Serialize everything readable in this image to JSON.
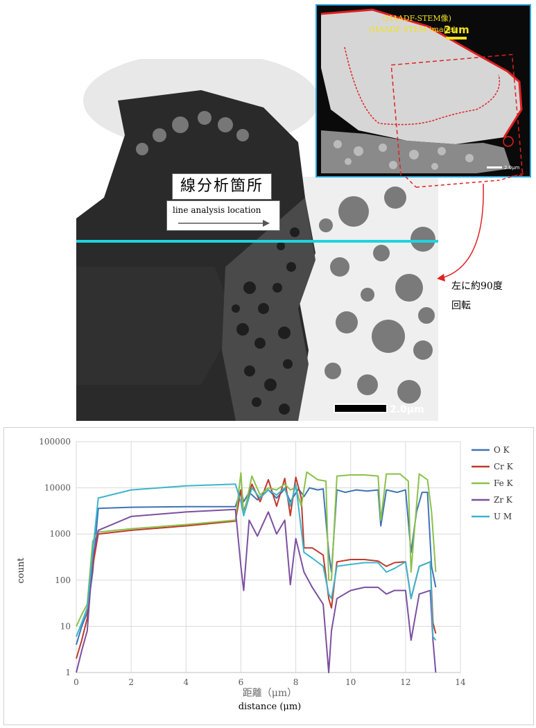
{
  "image": {
    "jp_label": "線分析箇所",
    "en_label": "line analysis location",
    "rotation_note_line1": "左に約90度",
    "rotation_note_line2": "回転",
    "main_scalebar": "2.0μm",
    "inset_title_jp": "(HAADF-STEM像)",
    "inset_title_en": "(HAADF-STEM image)",
    "inset_scalebar": "2um",
    "inset_small_scalebar": "2.0μm"
  },
  "colors": {
    "line_cyan": "#1fd3e0",
    "inset_border": "#29a9df",
    "outline_red": "#e02020",
    "inset_text": "#f0e020"
  },
  "chart_data": {
    "type": "line",
    "xlabel": "距離（μm）",
    "xlabel_en": "distance (μm)",
    "ylabel": "count",
    "xlim": [
      0,
      14
    ],
    "ylim": [
      1,
      100000
    ],
    "yscale": "log",
    "grid": true,
    "legend_position": "right",
    "x_ticks": [
      "0",
      "2",
      "4",
      "6",
      "8",
      "10",
      "12",
      "14"
    ],
    "y_ticks": [
      "1",
      "10",
      "100",
      "1000",
      "10000",
      "100000"
    ],
    "series": [
      {
        "name": "O K",
        "color": "#3d73b5",
        "points": [
          [
            0,
            4
          ],
          [
            0.2,
            10
          ],
          [
            0.4,
            20
          ],
          [
            0.6,
            150
          ],
          [
            0.8,
            3600
          ],
          [
            2,
            3800
          ],
          [
            4,
            3900
          ],
          [
            5.8,
            3900
          ],
          [
            6.0,
            9000
          ],
          [
            6.1,
            5000
          ],
          [
            6.3,
            8000
          ],
          [
            6.6,
            5500
          ],
          [
            7.0,
            9000
          ],
          [
            7.3,
            6000
          ],
          [
            7.6,
            9500
          ],
          [
            7.8,
            5000
          ],
          [
            8.1,
            9500
          ],
          [
            8.3,
            6500
          ],
          [
            8.5,
            10000
          ],
          [
            8.8,
            9000
          ],
          [
            9.0,
            9500
          ],
          [
            9.2,
            400
          ],
          [
            9.3,
            150
          ],
          [
            9.5,
            9000
          ],
          [
            9.8,
            8000
          ],
          [
            10.2,
            9000
          ],
          [
            10.6,
            8500
          ],
          [
            11.0,
            9000
          ],
          [
            11.1,
            1500
          ],
          [
            11.3,
            9000
          ],
          [
            11.7,
            8000
          ],
          [
            12.0,
            9000
          ],
          [
            12.2,
            400
          ],
          [
            12.4,
            3000
          ],
          [
            12.6,
            8000
          ],
          [
            12.8,
            8000
          ],
          [
            12.95,
            200
          ],
          [
            13.1,
            70
          ]
        ]
      },
      {
        "name": "Cr K",
        "color": "#c0392b",
        "points": [
          [
            0,
            2
          ],
          [
            0.2,
            5
          ],
          [
            0.4,
            15
          ],
          [
            0.6,
            200
          ],
          [
            0.8,
            1000
          ],
          [
            2,
            1200
          ],
          [
            4,
            1500
          ],
          [
            5.8,
            1900
          ],
          [
            6.0,
            9000
          ],
          [
            6.1,
            3000
          ],
          [
            6.4,
            12000
          ],
          [
            6.7,
            5000
          ],
          [
            7.0,
            15000
          ],
          [
            7.3,
            4000
          ],
          [
            7.6,
            16000
          ],
          [
            7.8,
            2500
          ],
          [
            8.0,
            17000
          ],
          [
            8.2,
            6000
          ],
          [
            8.3,
            500
          ],
          [
            8.6,
            500
          ],
          [
            9.0,
            350
          ],
          [
            9.2,
            40
          ],
          [
            9.3,
            25
          ],
          [
            9.5,
            250
          ],
          [
            10.0,
            280
          ],
          [
            10.5,
            280
          ],
          [
            11.0,
            260
          ],
          [
            11.3,
            200
          ],
          [
            11.6,
            240
          ],
          [
            12.0,
            250
          ],
          [
            12.2,
            40
          ],
          [
            12.5,
            200
          ],
          [
            12.9,
            250
          ],
          [
            13.0,
            12
          ],
          [
            13.1,
            7
          ]
        ]
      },
      {
        "name": "Fe K",
        "color": "#8ac04a",
        "points": [
          [
            0,
            10
          ],
          [
            0.2,
            18
          ],
          [
            0.4,
            30
          ],
          [
            0.6,
            700
          ],
          [
            0.8,
            1100
          ],
          [
            2,
            1300
          ],
          [
            4,
            1600
          ],
          [
            5.8,
            2000
          ],
          [
            6.0,
            21000
          ],
          [
            6.1,
            2500
          ],
          [
            6.4,
            18000
          ],
          [
            6.7,
            7000
          ],
          [
            7.0,
            10000
          ],
          [
            7.3,
            9000
          ],
          [
            7.6,
            12000
          ],
          [
            7.8,
            9000
          ],
          [
            8.0,
            10000
          ],
          [
            8.2,
            4000
          ],
          [
            8.4,
            22000
          ],
          [
            8.8,
            15000
          ],
          [
            9.1,
            14000
          ],
          [
            9.2,
            100
          ],
          [
            9.3,
            100
          ],
          [
            9.5,
            18000
          ],
          [
            10.0,
            19000
          ],
          [
            10.5,
            19000
          ],
          [
            11.0,
            18000
          ],
          [
            11.1,
            2000
          ],
          [
            11.3,
            20000
          ],
          [
            11.8,
            20000
          ],
          [
            12.1,
            14000
          ],
          [
            12.2,
            150
          ],
          [
            12.3,
            800
          ],
          [
            12.5,
            20000
          ],
          [
            12.8,
            15000
          ],
          [
            12.95,
            3000
          ],
          [
            13.1,
            150
          ]
        ]
      },
      {
        "name": "Zr K",
        "color": "#7b4fa0",
        "points": [
          [
            0,
            1
          ],
          [
            0.2,
            3
          ],
          [
            0.4,
            8
          ],
          [
            0.6,
            300
          ],
          [
            0.8,
            1200
          ],
          [
            2,
            2400
          ],
          [
            4,
            3000
          ],
          [
            5.8,
            3400
          ],
          [
            6.0,
            200
          ],
          [
            6.1,
            60
          ],
          [
            6.3,
            2000
          ],
          [
            6.6,
            900
          ],
          [
            7.0,
            3000
          ],
          [
            7.3,
            1000
          ],
          [
            7.6,
            2000
          ],
          [
            7.8,
            80
          ],
          [
            8.0,
            800
          ],
          [
            8.3,
            150
          ],
          [
            8.6,
            70
          ],
          [
            9.0,
            30
          ],
          [
            9.2,
            1
          ],
          [
            9.3,
            8
          ],
          [
            9.5,
            40
          ],
          [
            10.0,
            60
          ],
          [
            10.5,
            70
          ],
          [
            11.0,
            70
          ],
          [
            11.3,
            50
          ],
          [
            11.6,
            60
          ],
          [
            12.0,
            60
          ],
          [
            12.2,
            5
          ],
          [
            12.5,
            50
          ],
          [
            12.9,
            60
          ],
          [
            13.0,
            5
          ],
          [
            13.1,
            1
          ]
        ]
      },
      {
        "name": "U M",
        "color": "#3cb4cc",
        "points": [
          [
            0,
            6
          ],
          [
            0.2,
            12
          ],
          [
            0.4,
            25
          ],
          [
            0.6,
            400
          ],
          [
            0.8,
            6000
          ],
          [
            2,
            9000
          ],
          [
            4,
            11000
          ],
          [
            5.8,
            12000
          ],
          [
            6.0,
            5000
          ],
          [
            6.1,
            2500
          ],
          [
            6.4,
            10000
          ],
          [
            6.7,
            6000
          ],
          [
            7.0,
            9000
          ],
          [
            7.3,
            7000
          ],
          [
            7.6,
            10000
          ],
          [
            7.8,
            4000
          ],
          [
            8.0,
            12000
          ],
          [
            8.3,
            400
          ],
          [
            8.6,
            300
          ],
          [
            9.0,
            200
          ],
          [
            9.2,
            50
          ],
          [
            9.3,
            40
          ],
          [
            9.5,
            200
          ],
          [
            10.0,
            220
          ],
          [
            10.5,
            240
          ],
          [
            11.0,
            240
          ],
          [
            11.3,
            150
          ],
          [
            11.6,
            180
          ],
          [
            12.0,
            250
          ],
          [
            12.2,
            40
          ],
          [
            12.5,
            200
          ],
          [
            12.9,
            250
          ],
          [
            13.0,
            6
          ],
          [
            13.1,
            5
          ]
        ]
      }
    ]
  }
}
